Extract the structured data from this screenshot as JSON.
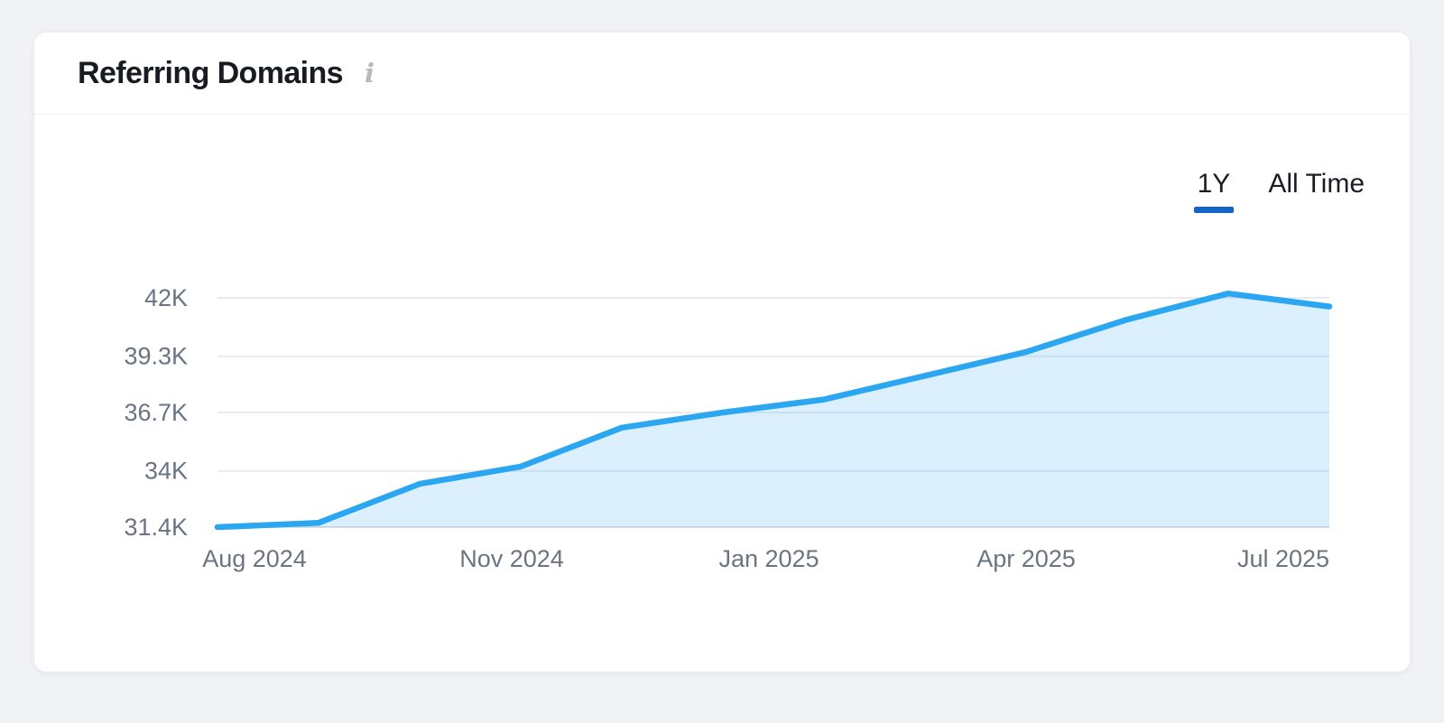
{
  "header": {
    "title": "Referring Domains",
    "info_icon": "i"
  },
  "tabs": [
    {
      "label": "1Y",
      "active": true
    },
    {
      "label": "All Time",
      "active": false
    }
  ],
  "colors": {
    "line": "#2BA6F0",
    "area_fill": "rgba(43,166,240,0.17)",
    "active_tab_underline": "#1564C8",
    "grid": "#E9EBEF",
    "axis_line": "#D9DDE3",
    "axis_text": "#6B7482",
    "title_text": "#181B21",
    "card_bg": "#FFFFFF",
    "page_bg": "#F1F2F6"
  },
  "chart_data": {
    "type": "area",
    "title": "Referring Domains",
    "x": [
      "Aug 2024",
      "Sep 2024",
      "Oct 2024",
      "Nov 2024",
      "Dec 2024",
      "Jan 2025",
      "Feb 2025",
      "Mar 2025",
      "Apr 2025",
      "May 2025",
      "Jun 2025",
      "Jul 2025"
    ],
    "values": [
      31400,
      31600,
      33400,
      34200,
      36000,
      36700,
      37300,
      38400,
      39500,
      41000,
      42200,
      41600
    ],
    "x_tick_labels": [
      "Aug 2024",
      "Nov 2024",
      "Jan 2025",
      "Apr 2025",
      "Jul 2025"
    ],
    "y_tick_labels": [
      "42K",
      "39.3K",
      "36.7K",
      "34K",
      "31.4K"
    ],
    "y_tick_values": [
      42000,
      39300,
      36700,
      34000,
      31400
    ],
    "ylim": [
      31400,
      42000
    ],
    "grid": true,
    "legend": false,
    "selected_range": "1Y"
  }
}
